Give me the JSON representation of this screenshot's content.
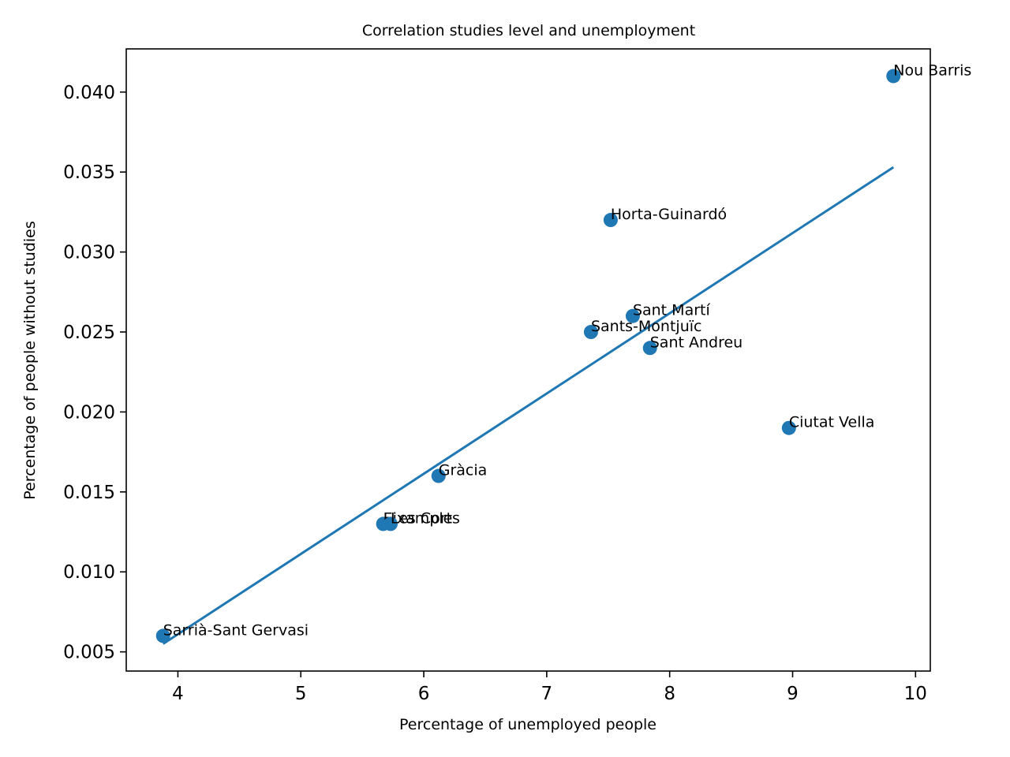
{
  "chart_data": {
    "type": "scatter",
    "title": "Correlation studies level and unemployment",
    "xlabel": "Percentage of unemployed people",
    "ylabel": "Percentage of people without studies",
    "xlim": [
      3.58,
      10.12
    ],
    "ylim": [
      0.0038,
      0.0427
    ],
    "xticks": [
      4,
      5,
      6,
      7,
      8,
      9,
      10
    ],
    "xtick_labels": [
      "4",
      "5",
      "6",
      "7",
      "8",
      "9",
      "10"
    ],
    "yticks": [
      0.005,
      0.01,
      0.015,
      0.02,
      0.025,
      0.03,
      0.035,
      0.04
    ],
    "ytick_labels": [
      "0.005",
      "0.010",
      "0.015",
      "0.020",
      "0.025",
      "0.030",
      "0.035",
      "0.040"
    ],
    "grid": false,
    "color": "#1f77b4",
    "points": [
      {
        "label": "Ciutat Vella",
        "x": 8.97,
        "y": 0.019
      },
      {
        "label": "Eixample",
        "x": 5.67,
        "y": 0.013
      },
      {
        "label": "Sants-Montjuïc",
        "x": 7.36,
        "y": 0.025
      },
      {
        "label": "Les Corts",
        "x": 5.73,
        "y": 0.013
      },
      {
        "label": "Sarrià-Sant Gervasi",
        "x": 3.88,
        "y": 0.006
      },
      {
        "label": "Gràcia",
        "x": 6.12,
        "y": 0.016
      },
      {
        "label": "Horta-Guinardó",
        "x": 7.52,
        "y": 0.032
      },
      {
        "label": "Nou Barris",
        "x": 9.82,
        "y": 0.041
      },
      {
        "label": "Sant Andreu",
        "x": 7.84,
        "y": 0.024
      },
      {
        "label": "Sant Martí",
        "x": 7.7,
        "y": 0.026
      }
    ],
    "trend_line": {
      "x": [
        3.88,
        9.82
      ],
      "y": [
        0.0055,
        0.0353
      ]
    }
  }
}
